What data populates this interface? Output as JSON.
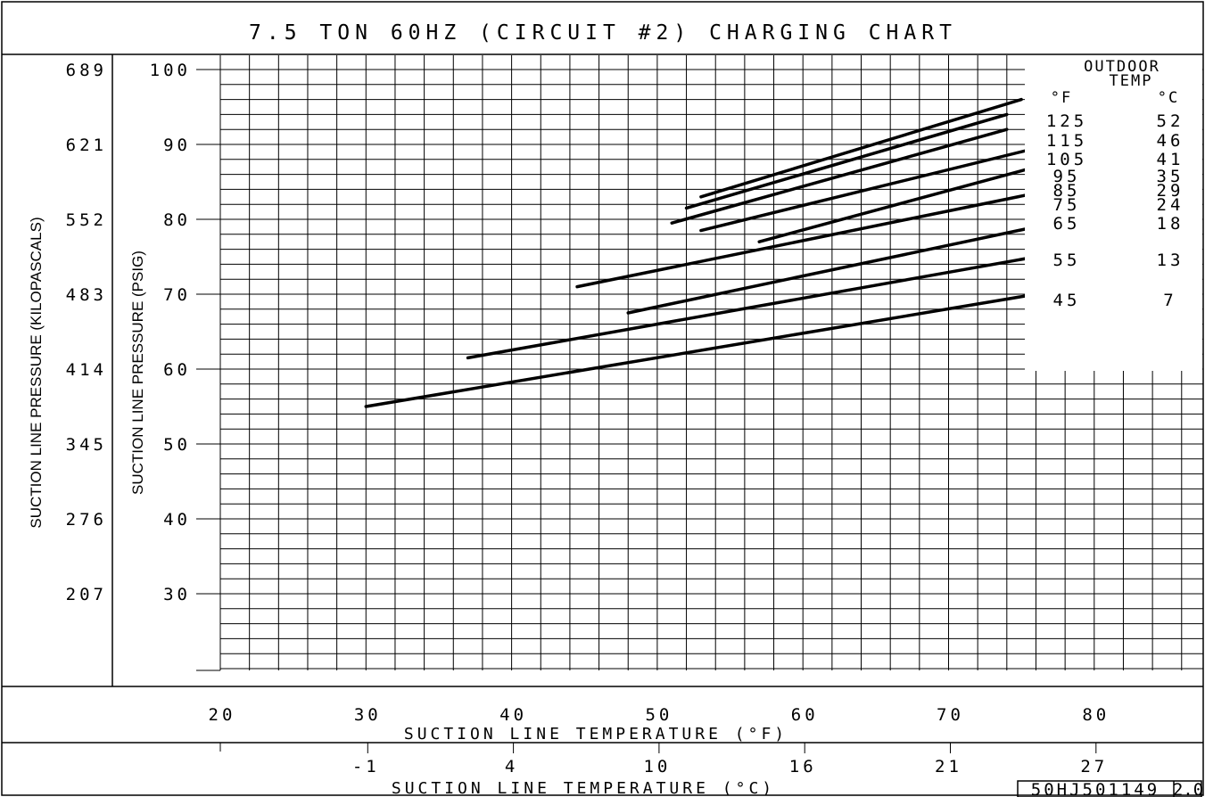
{
  "chart_data": {
    "type": "line",
    "title": "7.5 TON 60HZ (CIRCUIT #2) CHARGING CHART",
    "xlabel": "SUCTION LINE TEMPERATURE (°F)",
    "xlabel_secondary": "SUCTION LINE TEMPERATURE (°C)",
    "ylabel": "SUCTION LINE PRESSURE (PSIG)",
    "ylabel_secondary": "SUCTION LINE PRESSURE (KILOPASCALS)",
    "xlim": [
      20,
      86
    ],
    "ylim": [
      20,
      100
    ],
    "x_ticks": [
      20,
      30,
      40,
      50,
      60,
      70,
      80
    ],
    "y_ticks": [
      30,
      40,
      50,
      60,
      70,
      80,
      90,
      100
    ],
    "x_ticks_celsius": [
      {
        "label": "-1",
        "f": 30
      },
      {
        "label": "4",
        "f": 40
      },
      {
        "label": "10",
        "f": 50
      },
      {
        "label": "16",
        "f": 60
      },
      {
        "label": "21",
        "f": 70
      },
      {
        "label": "27",
        "f": 80
      }
    ],
    "y_ticks_kpa": [
      {
        "label": "207",
        "psig": 30
      },
      {
        "label": "276",
        "psig": 40
      },
      {
        "label": "345",
        "psig": 50
      },
      {
        "label": "414",
        "psig": 60
      },
      {
        "label": "483",
        "psig": 70
      },
      {
        "label": "552",
        "psig": 80
      },
      {
        "label": "621",
        "psig": 90
      },
      {
        "label": "689",
        "psig": 100
      }
    ],
    "grid": true,
    "legend": {
      "title_line1": "OUTDOOR",
      "title_line2": "TEMP",
      "unit_f": "°F",
      "unit_c": "°C",
      "placement": "right"
    },
    "series": [
      {
        "name_f": "125",
        "name_c": "52",
        "x": [
          53,
          75
        ],
        "y": [
          83,
          96
        ]
      },
      {
        "name_f": "115",
        "name_c": "46",
        "x": [
          52,
          74
        ],
        "y": [
          81.5,
          94
        ]
      },
      {
        "name_f": "105",
        "name_c": "41",
        "x": [
          51,
          74
        ],
        "y": [
          79.5,
          92
        ]
      },
      {
        "name_f": "95",
        "name_c": "35",
        "x": [
          53,
          76
        ],
        "y": [
          78.5,
          89.5
        ]
      },
      {
        "name_f": "85",
        "name_c": "29",
        "x": [
          57,
          76
        ],
        "y": [
          77,
          87
        ]
      },
      {
        "name_f": "75",
        "name_c": "24",
        "x": [
          44.5,
          76
        ],
        "y": [
          71,
          83.5
        ]
      },
      {
        "name_f": "65",
        "name_c": "18",
        "x": [
          48,
          76
        ],
        "y": [
          67.5,
          79
        ]
      },
      {
        "name_f": "55",
        "name_c": "13",
        "x": [
          37,
          76
        ],
        "y": [
          61.5,
          75
        ]
      },
      {
        "name_f": "45",
        "name_c": "7",
        "x": [
          30,
          76
        ],
        "y": [
          55,
          70
        ]
      }
    ],
    "drawing_number": "50HJ501149",
    "revision": "2.0"
  }
}
